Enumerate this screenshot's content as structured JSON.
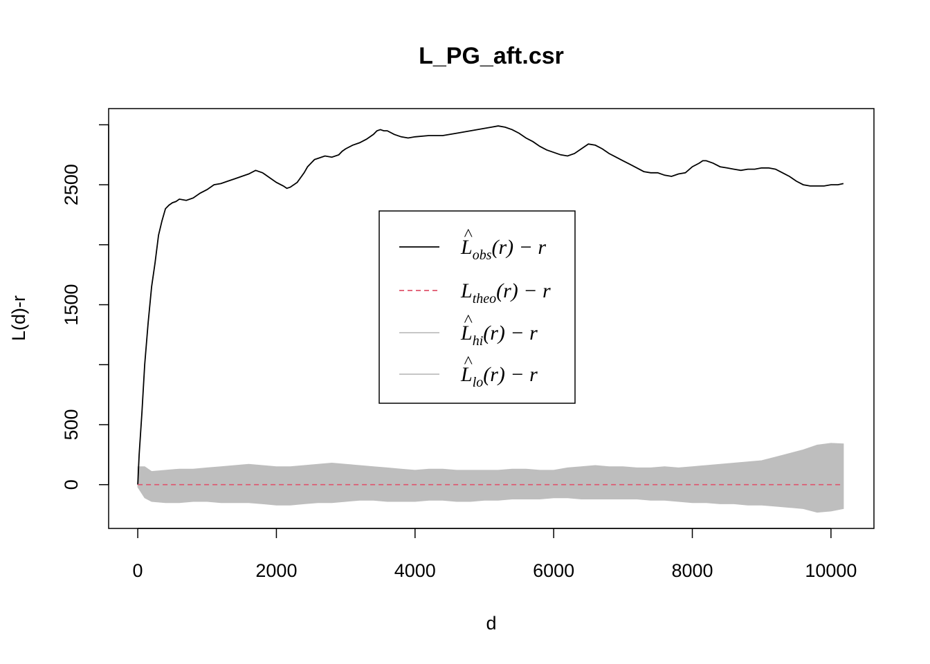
{
  "chart_data": {
    "type": "line",
    "title": "L_PG_aft.csr",
    "xlabel": "d",
    "ylabel": "L(d)-r",
    "xlim": [
      -420,
      10620
    ],
    "ylim": [
      -365,
      3135
    ],
    "x_ticks": [
      0,
      2000,
      4000,
      6000,
      8000,
      10000
    ],
    "x_tick_labels": [
      "0",
      "2000",
      "4000",
      "6000",
      "8000",
      "10000"
    ],
    "y_ticks": [
      0,
      500,
      1000,
      1500,
      2000,
      2500,
      3000
    ],
    "y_tick_labels": [
      "0",
      "500",
      "",
      "1500",
      "",
      "2500",
      ""
    ],
    "grid": false,
    "legend_position": "center",
    "series": [
      {
        "name": "L̂_obs(r) − r",
        "color": "#000000",
        "style": "solid",
        "x": [
          0,
          20,
          60,
          100,
          150,
          200,
          250,
          300,
          350,
          400,
          450,
          500,
          550,
          600,
          700,
          800,
          900,
          1000,
          1100,
          1200,
          1300,
          1400,
          1500,
          1600,
          1700,
          1800,
          1900,
          2000,
          2100,
          2150,
          2200,
          2300,
          2400,
          2450,
          2500,
          2550,
          2600,
          2700,
          2800,
          2900,
          2950,
          3000,
          3100,
          3200,
          3300,
          3400,
          3450,
          3500,
          3550,
          3600,
          3700,
          3800,
          3900,
          4000,
          4200,
          4400,
          4600,
          4800,
          5000,
          5100,
          5200,
          5300,
          5400,
          5500,
          5600,
          5700,
          5800,
          5900,
          6000,
          6100,
          6200,
          6300,
          6400,
          6500,
          6600,
          6700,
          6800,
          6900,
          7000,
          7100,
          7200,
          7300,
          7400,
          7500,
          7600,
          7700,
          7800,
          7900,
          8000,
          8100,
          8150,
          8200,
          8300,
          8400,
          8500,
          8600,
          8700,
          8800,
          8900,
          9000,
          9100,
          9200,
          9300,
          9400,
          9500,
          9600,
          9700,
          9800,
          9900,
          10000,
          10100,
          10180
        ],
        "y": [
          0,
          250,
          600,
          1000,
          1350,
          1650,
          1850,
          2080,
          2200,
          2300,
          2330,
          2350,
          2360,
          2380,
          2370,
          2390,
          2430,
          2460,
          2500,
          2510,
          2530,
          2550,
          2570,
          2590,
          2620,
          2600,
          2560,
          2520,
          2490,
          2470,
          2480,
          2520,
          2600,
          2650,
          2680,
          2710,
          2720,
          2740,
          2730,
          2750,
          2780,
          2800,
          2830,
          2850,
          2880,
          2920,
          2950,
          2960,
          2950,
          2950,
          2920,
          2900,
          2890,
          2900,
          2910,
          2910,
          2930,
          2950,
          2970,
          2980,
          2990,
          2980,
          2960,
          2930,
          2890,
          2860,
          2820,
          2790,
          2770,
          2750,
          2740,
          2760,
          2800,
          2840,
          2830,
          2800,
          2760,
          2730,
          2700,
          2670,
          2640,
          2610,
          2600,
          2600,
          2580,
          2570,
          2590,
          2600,
          2650,
          2680,
          2700,
          2700,
          2680,
          2650,
          2640,
          2630,
          2620,
          2630,
          2630,
          2640,
          2640,
          2630,
          2600,
          2570,
          2530,
          2500,
          2490,
          2490,
          2490,
          2500,
          2500,
          2510
        ]
      },
      {
        "name": "L_theo(r) − r",
        "color": "#DF536B",
        "style": "dashed",
        "x": [
          0,
          10180
        ],
        "y": [
          0,
          0
        ]
      }
    ],
    "envelope": {
      "hi_name": "L̂_hi(r) − r",
      "lo_name": "L̂_lo(r) − r",
      "color": "#BEBEBE",
      "x": [
        0,
        100,
        200,
        400,
        600,
        800,
        1000,
        1200,
        1400,
        1600,
        1800,
        2000,
        2200,
        2400,
        2600,
        2800,
        3000,
        3200,
        3400,
        3600,
        3800,
        4000,
        4200,
        4400,
        4600,
        4800,
        5000,
        5200,
        5400,
        5600,
        5800,
        6000,
        6200,
        6400,
        6600,
        6800,
        7000,
        7200,
        7400,
        7600,
        7800,
        8000,
        8200,
        8400,
        8600,
        8800,
        9000,
        9200,
        9400,
        9600,
        9800,
        10000,
        10180
      ],
      "hi": [
        150,
        150,
        110,
        120,
        130,
        130,
        140,
        150,
        160,
        170,
        160,
        150,
        150,
        160,
        170,
        180,
        170,
        160,
        150,
        140,
        130,
        120,
        130,
        130,
        120,
        120,
        120,
        120,
        130,
        130,
        120,
        120,
        140,
        150,
        160,
        150,
        150,
        140,
        140,
        150,
        140,
        150,
        160,
        170,
        180,
        190,
        200,
        230,
        260,
        290,
        330,
        345,
        340
      ],
      "lo": [
        -20,
        -110,
        -140,
        -150,
        -150,
        -140,
        -140,
        -150,
        -150,
        -150,
        -160,
        -170,
        -170,
        -160,
        -150,
        -150,
        -140,
        -130,
        -130,
        -140,
        -140,
        -140,
        -130,
        -130,
        -140,
        -140,
        -130,
        -130,
        -120,
        -120,
        -120,
        -110,
        -110,
        -120,
        -120,
        -120,
        -120,
        -120,
        -130,
        -130,
        -140,
        -150,
        -150,
        -160,
        -160,
        -170,
        -170,
        -180,
        -190,
        -200,
        -230,
        -220,
        -200
      ]
    }
  }
}
